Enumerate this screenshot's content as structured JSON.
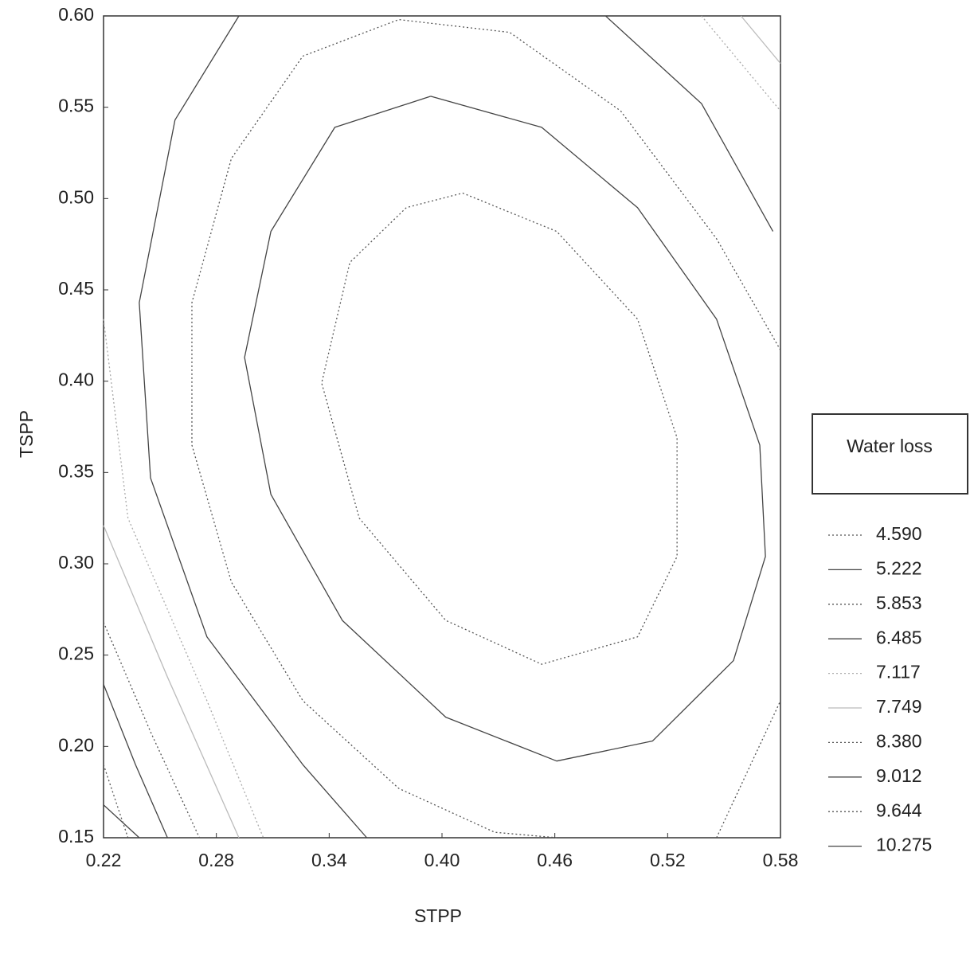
{
  "chart_data": {
    "type": "contour",
    "x_label": "STPP",
    "y_label": "TSPP",
    "legend_title": "Water loss",
    "xlim": [
      0.22,
      0.58
    ],
    "ylim": [
      0.15,
      0.6
    ],
    "xticks": [
      {
        "value": 0.22,
        "label": "0.22"
      },
      {
        "value": 0.28,
        "label": "0.28"
      },
      {
        "value": 0.34,
        "label": "0.34"
      },
      {
        "value": 0.4,
        "label": "0.40"
      },
      {
        "value": 0.46,
        "label": "0.46"
      },
      {
        "value": 0.52,
        "label": "0.52"
      },
      {
        "value": 0.58,
        "label": "0.58"
      }
    ],
    "yticks": [
      {
        "value": 0.15,
        "label": "0.15"
      },
      {
        "value": 0.2,
        "label": "0.20"
      },
      {
        "value": 0.25,
        "label": "0.25"
      },
      {
        "value": 0.3,
        "label": "0.30"
      },
      {
        "value": 0.35,
        "label": "0.35"
      },
      {
        "value": 0.4,
        "label": "0.40"
      },
      {
        "value": 0.45,
        "label": "0.45"
      },
      {
        "value": 0.5,
        "label": "0.50"
      },
      {
        "value": 0.55,
        "label": "0.55"
      },
      {
        "value": 0.6,
        "label": "0.60"
      }
    ],
    "series": [
      {
        "name": "4.590",
        "dash": "dotted",
        "color": "#555",
        "x": [
          0.411,
          0.461,
          0.504,
          0.525,
          0.525,
          0.504,
          0.453,
          0.402,
          0.356,
          0.336,
          0.351,
          0.381,
          0.411
        ],
        "values": [
          0.503,
          0.482,
          0.434,
          0.369,
          0.304,
          0.26,
          0.245,
          0.269,
          0.325,
          0.399,
          0.465,
          0.495,
          0.503
        ]
      },
      {
        "name": "5.222",
        "dash": "solid",
        "color": "#444",
        "x": [
          0.394,
          0.453,
          0.504,
          0.546,
          0.569,
          0.572,
          0.555,
          0.512,
          0.461,
          0.402,
          0.347,
          0.309,
          0.295,
          0.309,
          0.343,
          0.394
        ],
        "values": [
          0.556,
          0.539,
          0.495,
          0.434,
          0.365,
          0.304,
          0.247,
          0.203,
          0.192,
          0.216,
          0.269,
          0.338,
          0.413,
          0.482,
          0.539,
          0.556
        ]
      },
      {
        "name": "5.853",
        "dash": "dotted",
        "color": "#555",
        "x": [
          0.58,
          0.546,
          0.495,
          0.436,
          0.377,
          0.326,
          0.288,
          0.267,
          0.267,
          0.288,
          0.326,
          0.377,
          0.428,
          0.461,
          null,
          0.546,
          0.58
        ],
        "values": [
          0.417,
          0.478,
          0.548,
          0.591,
          0.598,
          0.578,
          0.522,
          0.443,
          0.365,
          0.29,
          0.225,
          0.177,
          0.153,
          0.15,
          null,
          0.15,
          0.225
        ]
      },
      {
        "name": "6.485",
        "dash": "solid",
        "color": "#444",
        "x": [
          0.292,
          0.258,
          0.239,
          0.245,
          0.275,
          0.326,
          0.36,
          null,
          0.487,
          0.538,
          0.576
        ],
        "values": [
          0.6,
          0.543,
          0.443,
          0.347,
          0.26,
          0.19,
          0.15,
          null,
          0.6,
          0.552,
          0.482
        ]
      },
      {
        "name": "7.117",
        "dash": "dotted",
        "color": "#aaa",
        "x": [
          0.22,
          0.233,
          0.275,
          0.305,
          null,
          0.538,
          0.58
        ],
        "values": [
          0.434,
          0.325,
          0.225,
          0.15,
          null,
          0.6,
          0.548
        ]
      },
      {
        "name": "7.749",
        "dash": "solid",
        "color": "#bbb",
        "x": [
          0.22,
          0.254,
          0.292,
          null,
          0.559,
          0.58
        ],
        "values": [
          0.321,
          0.238,
          0.15,
          null,
          0.6,
          0.574
        ]
      },
      {
        "name": "8.380",
        "dash": "dotted",
        "color": "#555",
        "x": [
          0.22,
          0.245,
          0.271
        ],
        "values": [
          0.268,
          0.208,
          0.15
        ]
      },
      {
        "name": "9.012",
        "dash": "solid",
        "color": "#444",
        "x": [
          0.22,
          0.237,
          0.254
        ],
        "values": [
          0.234,
          0.19,
          0.15
        ]
      },
      {
        "name": "9.644",
        "dash": "dotted",
        "color": "#555",
        "x": [
          0.22,
          0.233
        ],
        "values": [
          0.19,
          0.15
        ]
      },
      {
        "name": "10.275",
        "dash": "solid",
        "color": "#444",
        "x": [
          0.22,
          0.239
        ],
        "values": [
          0.168,
          0.15
        ]
      }
    ]
  }
}
